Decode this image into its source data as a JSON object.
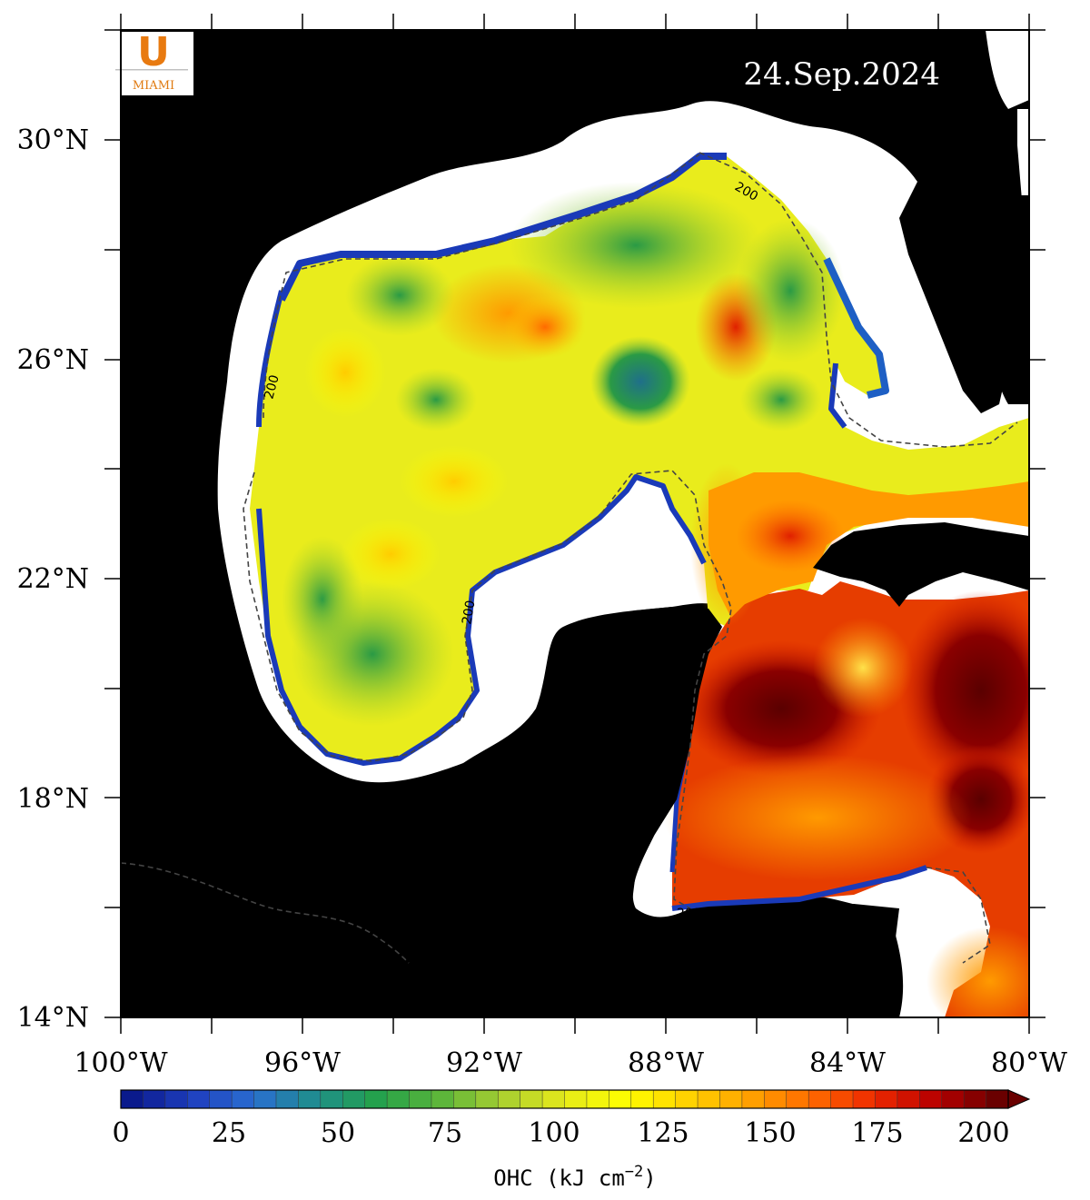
{
  "date": "24.Sep.2024",
  "logo": {
    "text": "MIAMI",
    "mark": "U"
  },
  "axes": {
    "lat_labels": [
      "30°N",
      "26°N",
      "22°N",
      "18°N",
      "14°N"
    ],
    "lon_labels": [
      "100°W",
      "96°W",
      "92°W",
      "88°W",
      "84°W",
      "80°W"
    ]
  },
  "contour": {
    "label": "200"
  },
  "colorbar": {
    "ticks": [
      "0",
      "25",
      "50",
      "75",
      "100",
      "125",
      "150",
      "175",
      "200"
    ],
    "title_main": "OHC (kJ cm",
    "title_exp": "−2",
    "title_close": ")"
  },
  "colors": {
    "land": "#000000",
    "shelf": "#ffffff",
    "scale": [
      "#0a1a8c",
      "#1f3fc0",
      "#2a6fd0",
      "#1f8f8a",
      "#24a24a",
      "#5bb53a",
      "#a9cf30",
      "#e6ea1a",
      "#ffff00",
      "#ffd200",
      "#ffa200",
      "#ff6a00",
      "#ee2a00",
      "#b80000",
      "#6a0000"
    ]
  },
  "chart_data": {
    "type": "heatmap",
    "variable": "OHC",
    "units": "kJ cm−2",
    "xlim": [
      -100,
      -80
    ],
    "ylim": [
      14,
      32
    ],
    "color_range": [
      0,
      200
    ],
    "contour_level": 200,
    "regions": [
      {
        "lon": -95.0,
        "lat": 25.5,
        "value": 105
      },
      {
        "lon": -93.5,
        "lat": 26.7,
        "value": 55
      },
      {
        "lon": -92.8,
        "lat": 25.2,
        "value": 80
      },
      {
        "lon": -91.5,
        "lat": 26.5,
        "value": 140
      },
      {
        "lon": -90.0,
        "lat": 26.6,
        "value": 130
      },
      {
        "lon": -88.5,
        "lat": 28.3,
        "value": 55
      },
      {
        "lon": -88.4,
        "lat": 25.4,
        "value": 30
      },
      {
        "lon": -86.7,
        "lat": 26.5,
        "value": 160
      },
      {
        "lon": -85.2,
        "lat": 25.3,
        "value": 65
      },
      {
        "lon": -84.5,
        "lat": 27.5,
        "value": 50
      },
      {
        "lon": -97.0,
        "lat": 23.0,
        "value": 95
      },
      {
        "lon": -94.0,
        "lat": 22.2,
        "value": 115
      },
      {
        "lon": -95.7,
        "lat": 21.4,
        "value": 65
      },
      {
        "lon": -94.5,
        "lat": 19.5,
        "value": 85
      },
      {
        "lon": -86.5,
        "lat": 22.5,
        "value": 150
      },
      {
        "lon": -85.0,
        "lat": 19.8,
        "value": 195
      },
      {
        "lon": -84.0,
        "lat": 20.3,
        "value": 120
      },
      {
        "lon": -81.0,
        "lat": 19.5,
        "value": 200
      },
      {
        "lon": -85.5,
        "lat": 17.0,
        "value": 150
      },
      {
        "lon": -81.5,
        "lat": 14.8,
        "value": 160
      }
    ]
  }
}
